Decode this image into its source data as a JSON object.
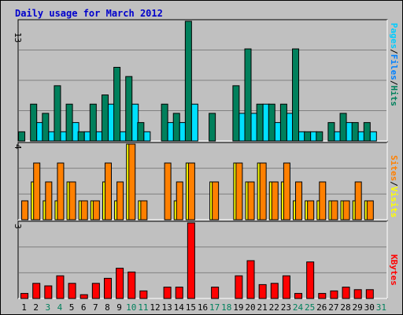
{
  "title": "Daily usage for March 2012",
  "colors": {
    "hits": "#00805c",
    "files": "#00e0ff",
    "sites": "#ff8000",
    "visits": "#ffff00",
    "kbytes": "#ff0000",
    "title": "#0000cc",
    "weekend_day": "#00805c",
    "weekday_day": "#000000"
  },
  "panels": {
    "top": {
      "max_label": "13",
      "legend": [
        "Pages",
        "Files",
        "Hits"
      ],
      "legend_colors": [
        "#00ccff",
        "#0080ff",
        "#00805c"
      ]
    },
    "middle": {
      "max_label": "4",
      "legend": [
        "Sites",
        "Visits"
      ],
      "legend_colors": [
        "#ff8000",
        "#ffff00"
      ]
    },
    "bottom": {
      "max_label": "3",
      "legend": [
        "KBytes"
      ],
      "legend_colors": [
        "#ff0000"
      ]
    }
  },
  "chart_data": {
    "type": "bar",
    "title": "Daily usage for March 2012",
    "categories": [
      "1",
      "2",
      "3",
      "4",
      "5",
      "6",
      "7",
      "8",
      "9",
      "10",
      "11",
      "12",
      "13",
      "14",
      "15",
      "16",
      "17",
      "18",
      "19",
      "20",
      "21",
      "22",
      "23",
      "24",
      "25",
      "26",
      "27",
      "28",
      "29",
      "30",
      "31"
    ],
    "weekend_days": [
      "3",
      "4",
      "10",
      "11",
      "17",
      "18",
      "24",
      "25",
      "31"
    ],
    "panels": [
      {
        "ymax": 13,
        "series": [
          {
            "name": "Hits",
            "values": [
              1,
              4,
              3,
              6,
              4,
              1,
              4,
              5,
              8,
              7,
              2,
              0,
              4,
              3,
              13,
              0,
              3,
              0,
              6,
              10,
              4,
              4,
              4,
              10,
              1,
              1,
              2,
              3,
              2,
              2,
              0
            ]
          },
          {
            "name": "Files",
            "values": [
              0,
              2,
              1,
              1,
              2,
              1,
              1,
              4,
              1,
              4,
              1,
              0,
              2,
              2,
              4,
              0,
              0,
              0,
              3,
              3,
              4,
              2,
              3,
              1,
              1,
              0,
              1,
              2,
              1,
              1,
              0
            ]
          },
          {
            "name": "Pages",
            "values": [
              0,
              0,
              0,
              0,
              0,
              0,
              0,
              0,
              0,
              0,
              0,
              0,
              0,
              0,
              0,
              0,
              0,
              0,
              0,
              0,
              0,
              0,
              0,
              0,
              0,
              0,
              0,
              0,
              0,
              0,
              0
            ]
          }
        ]
      },
      {
        "ymax": 4,
        "series": [
          {
            "name": "Sites",
            "values": [
              1,
              3,
              2,
              3,
              2,
              1,
              1,
              3,
              2,
              4,
              1,
              0,
              3,
              2,
              3,
              0,
              2,
              0,
              3,
              2,
              3,
              2,
              3,
              2,
              1,
              2,
              1,
              1,
              2,
              1,
              0
            ]
          },
          {
            "name": "Visits",
            "values": [
              0,
              2,
              1,
              1,
              2,
              1,
              1,
              2,
              1,
              4,
              1,
              0,
              0,
              1,
              3,
              0,
              2,
              0,
              3,
              2,
              3,
              2,
              2,
              1,
              1,
              1,
              1,
              1,
              1,
              1,
              0
            ]
          }
        ]
      },
      {
        "ymax": 3,
        "series": [
          {
            "name": "KBytes",
            "values": [
              0.2,
              0.6,
              0.5,
              0.9,
              0.6,
              0.15,
              0.6,
              0.8,
              1.2,
              1.05,
              0.3,
              0,
              0.45,
              0.45,
              3,
              0,
              0.45,
              0,
              0.9,
              1.5,
              0.55,
              0.6,
              0.9,
              0.2,
              1.45,
              0.2,
              0.3,
              0.45,
              0.35,
              0.35,
              0
            ]
          }
        ]
      }
    ]
  }
}
